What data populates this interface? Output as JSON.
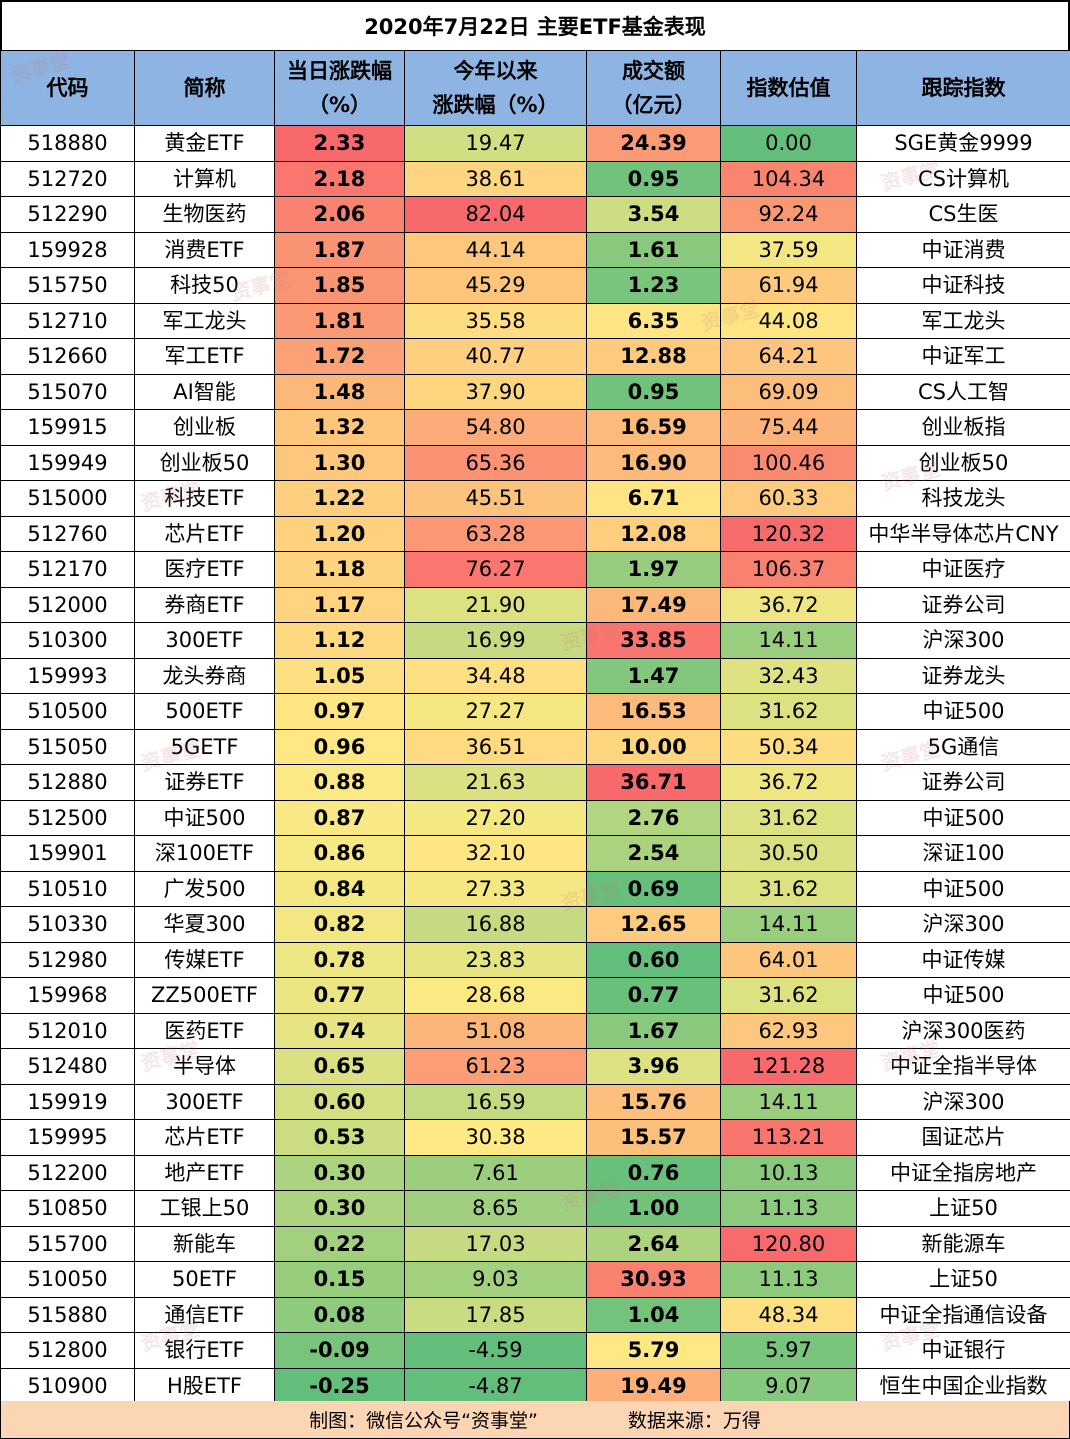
{
  "title": "2020年7月22日 主要ETF基金表现",
  "headers": [
    {
      "line1": "代码",
      "line2": ""
    },
    {
      "line1": "简称",
      "line2": ""
    },
    {
      "line1": "当日涨跌幅",
      "line2": "（%）"
    },
    {
      "line1": "今年以来",
      "line2": "涨跌幅（%）"
    },
    {
      "line1": "成交额",
      "line2": "（亿元）"
    },
    {
      "line1": "指数估值",
      "line2": ""
    },
    {
      "line1": "跟踪指数",
      "line2": ""
    }
  ],
  "rows": [
    [
      "518880",
      "黄金ETF",
      "2.33",
      "19.47",
      "24.39",
      "0.00",
      "SGE黄金9999"
    ],
    [
      "512720",
      "计算机",
      "2.18",
      "38.61",
      "0.95",
      "104.34",
      "CS计算机"
    ],
    [
      "512290",
      "生物医药",
      "2.06",
      "82.04",
      "3.54",
      "92.24",
      "CS生医"
    ],
    [
      "159928",
      "消费ETF",
      "1.87",
      "44.14",
      "1.61",
      "37.59",
      "中证消费"
    ],
    [
      "515750",
      "科技50",
      "1.85",
      "45.29",
      "1.23",
      "61.94",
      "中证科技"
    ],
    [
      "512710",
      "军工龙头",
      "1.81",
      "35.58",
      "6.35",
      "44.08",
      "军工龙头"
    ],
    [
      "512660",
      "军工ETF",
      "1.72",
      "40.77",
      "12.88",
      "64.21",
      "中证军工"
    ],
    [
      "515070",
      "AI智能",
      "1.48",
      "37.90",
      "0.95",
      "69.09",
      "CS人工智"
    ],
    [
      "159915",
      "创业板",
      "1.32",
      "54.80",
      "16.59",
      "75.44",
      "创业板指"
    ],
    [
      "159949",
      "创业板50",
      "1.30",
      "65.36",
      "16.90",
      "100.46",
      "创业板50"
    ],
    [
      "515000",
      "科技ETF",
      "1.22",
      "45.51",
      "6.71",
      "60.33",
      "科技龙头"
    ],
    [
      "512760",
      "芯片ETF",
      "1.20",
      "63.28",
      "12.08",
      "120.32",
      "中华半导体芯片CNY"
    ],
    [
      "512170",
      "医疗ETF",
      "1.18",
      "76.27",
      "1.97",
      "106.37",
      "中证医疗"
    ],
    [
      "512000",
      "券商ETF",
      "1.17",
      "21.90",
      "17.49",
      "36.72",
      "证券公司"
    ],
    [
      "510300",
      "300ETF",
      "1.12",
      "16.99",
      "33.85",
      "14.11",
      "沪深300"
    ],
    [
      "159993",
      "龙头券商",
      "1.05",
      "34.48",
      "1.47",
      "32.43",
      "证券龙头"
    ],
    [
      "510500",
      "500ETF",
      "0.97",
      "27.27",
      "16.53",
      "31.62",
      "中证500"
    ],
    [
      "515050",
      "5GETF",
      "0.96",
      "36.51",
      "10.00",
      "50.34",
      "5G通信"
    ],
    [
      "512880",
      "证券ETF",
      "0.88",
      "21.63",
      "36.71",
      "36.72",
      "证券公司"
    ],
    [
      "512500",
      "中证500",
      "0.87",
      "27.20",
      "2.76",
      "31.62",
      "中证500"
    ],
    [
      "159901",
      "深100ETF",
      "0.86",
      "32.10",
      "2.54",
      "30.50",
      "深证100"
    ],
    [
      "510510",
      "广发500",
      "0.84",
      "27.33",
      "0.69",
      "31.62",
      "中证500"
    ],
    [
      "510330",
      "华夏300",
      "0.82",
      "16.88",
      "12.65",
      "14.11",
      "沪深300"
    ],
    [
      "512980",
      "传媒ETF",
      "0.78",
      "23.83",
      "0.60",
      "64.01",
      "中证传媒"
    ],
    [
      "159968",
      "ZZ500ETF",
      "0.77",
      "28.68",
      "0.77",
      "31.62",
      "中证500"
    ],
    [
      "512010",
      "医药ETF",
      "0.74",
      "51.08",
      "1.67",
      "62.93",
      "沪深300医药"
    ],
    [
      "512480",
      "半导体",
      "0.65",
      "61.23",
      "3.96",
      "121.28",
      "中证全指半导体"
    ],
    [
      "159919",
      "300ETF",
      "0.60",
      "16.59",
      "15.76",
      "14.11",
      "沪深300"
    ],
    [
      "159995",
      "芯片ETF",
      "0.53",
      "30.38",
      "15.57",
      "113.21",
      "国证芯片"
    ],
    [
      "512200",
      "地产ETF",
      "0.30",
      "7.61",
      "0.76",
      "10.13",
      "中证全指房地产"
    ],
    [
      "510850",
      "工银上50",
      "0.30",
      "8.65",
      "1.00",
      "11.13",
      "上证50"
    ],
    [
      "515700",
      "新能车",
      "0.22",
      "17.03",
      "2.64",
      "120.80",
      "新能源车"
    ],
    [
      "510050",
      "50ETF",
      "0.15",
      "9.03",
      "30.93",
      "11.13",
      "上证50"
    ],
    [
      "515880",
      "通信ETF",
      "0.08",
      "17.85",
      "1.04",
      "48.34",
      "中证全指通信设备"
    ],
    [
      "512800",
      "银行ETF",
      "-0.09",
      "-4.59",
      "5.79",
      "5.97",
      "中证银行"
    ],
    [
      "510900",
      "H股ETF",
      "-0.25",
      "-4.87",
      "19.49",
      "9.07",
      "恒生中国企业指数"
    ]
  ],
  "footer": {
    "maker": "制图：微信公众号“资事堂”",
    "source": "数据来源：万得"
  },
  "watermark": "资事堂",
  "colors": {
    "header_bg": "#8db4e2",
    "footer_bg": "#fcd5b4",
    "scale_low": "#63be7b",
    "scale_mid": "#ffeb84",
    "scale_high": "#f8696b"
  }
}
